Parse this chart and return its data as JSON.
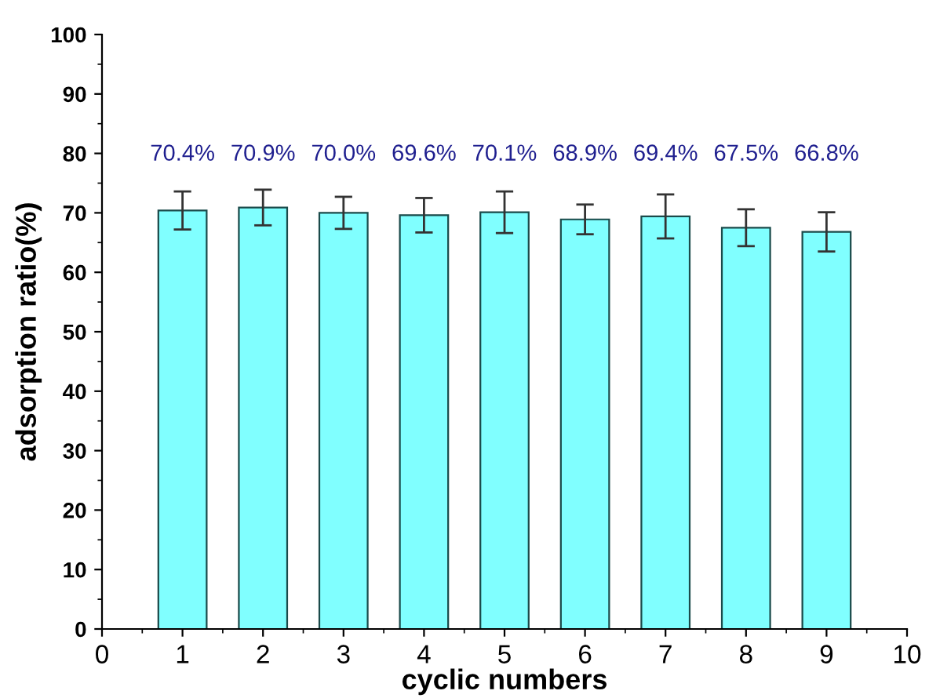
{
  "chart_data": {
    "type": "bar",
    "xlabel": "cyclic numbers",
    "ylabel": "adsorption ratio(%)",
    "x": [
      1,
      2,
      3,
      4,
      5,
      6,
      7,
      8,
      9
    ],
    "values": [
      70.4,
      70.9,
      70.0,
      69.6,
      70.1,
      68.9,
      69.4,
      67.5,
      66.8
    ],
    "errors": [
      3.2,
      3.0,
      2.7,
      2.9,
      3.5,
      2.5,
      3.7,
      3.1,
      3.3
    ],
    "value_labels": [
      "70.4%",
      "70.9%",
      "70.0%",
      "69.6%",
      "70.1%",
      "68.9%",
      "69.4%",
      "67.5%",
      "66.8%"
    ],
    "color": "#80ffff",
    "xlim": [
      0,
      10
    ],
    "xticks": [
      0,
      1,
      2,
      3,
      4,
      5,
      6,
      7,
      8,
      9,
      10
    ],
    "ylim": [
      0,
      100
    ],
    "yticks": [
      0,
      10,
      20,
      30,
      40,
      50,
      60,
      70,
      80,
      90,
      100
    ],
    "grid": false
  }
}
